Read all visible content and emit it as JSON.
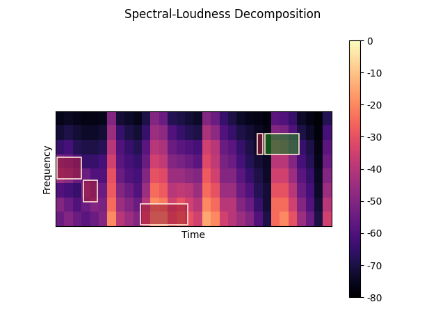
{
  "chart_data": {
    "type": "heatmap",
    "title": "Spectral-Loudness Decomposition",
    "x_label": "Time",
    "y_label": "Frequency",
    "tick_labels": false,
    "color": "magma",
    "xlim": [
      0,
      32
    ],
    "ylim": [
      0,
      8
    ],
    "cells": [
      [
        -55,
        -50,
        -55,
        -58,
        -55,
        -50,
        -20,
        -40,
        -45,
        -50,
        -35,
        -15,
        -15,
        -30,
        -25,
        -30,
        -35,
        -15,
        -20,
        -35,
        -40,
        -45,
        -50,
        -60,
        -70,
        -25,
        -20,
        -30,
        -45,
        -55,
        -70,
        -35
      ],
      [
        -50,
        -55,
        -60,
        -55,
        -50,
        -52,
        -25,
        -45,
        -50,
        -55,
        -40,
        -20,
        -22,
        -35,
        -30,
        -35,
        -40,
        -20,
        -25,
        -40,
        -40,
        -50,
        -55,
        -65,
        -72,
        -25,
        -25,
        -35,
        -50,
        -60,
        -72,
        -40
      ],
      [
        -60,
        -62,
        -65,
        -50,
        -55,
        -55,
        -28,
        -50,
        -55,
        -60,
        -45,
        -25,
        -28,
        -40,
        -38,
        -40,
        -45,
        -25,
        -30,
        -45,
        -45,
        -55,
        -60,
        -68,
        -72,
        -30,
        -30,
        -40,
        -55,
        -62,
        -74,
        -45
      ],
      [
        -45,
        -48,
        -55,
        -55,
        -60,
        -60,
        -30,
        -55,
        -60,
        -62,
        -50,
        -30,
        -32,
        -45,
        -45,
        -48,
        -50,
        -28,
        -35,
        -50,
        -50,
        -58,
        -65,
        -70,
        -74,
        -35,
        -35,
        -45,
        -58,
        -65,
        -75,
        -50
      ],
      [
        -52,
        -55,
        -60,
        -65,
        -65,
        -62,
        -35,
        -58,
        -62,
        -65,
        -55,
        -35,
        -38,
        -50,
        -52,
        -55,
        -58,
        -32,
        -38,
        -52,
        -55,
        -62,
        -68,
        -72,
        -75,
        -40,
        -40,
        -50,
        -62,
        -68,
        -76,
        -55
      ],
      [
        -65,
        -62,
        -68,
        -70,
        -70,
        -68,
        -40,
        -60,
        -65,
        -68,
        -58,
        -40,
        -42,
        -55,
        -58,
        -60,
        -62,
        -35,
        -40,
        -55,
        -58,
        -65,
        -70,
        -74,
        -76,
        -42,
        -45,
        -55,
        -65,
        -70,
        -77,
        -58
      ],
      [
        -72,
        -70,
        -72,
        -74,
        -74,
        -72,
        -45,
        -65,
        -70,
        -72,
        -65,
        -45,
        -48,
        -60,
        -65,
        -68,
        -70,
        -42,
        -48,
        -60,
        -65,
        -70,
        -72,
        -75,
        -77,
        -50,
        -52,
        -60,
        -70,
        -74,
        -78,
        -62
      ],
      [
        -76,
        -75,
        -76,
        -77,
        -77,
        -76,
        -50,
        -72,
        -74,
        -76,
        -70,
        -50,
        -55,
        -68,
        -70,
        -72,
        -74,
        -50,
        -55,
        -65,
        -70,
        -74,
        -76,
        -77,
        -78,
        -58,
        -60,
        -65,
        -74,
        -77,
        -79,
        -68
      ]
    ],
    "colorbar_range": [
      -80,
      0
    ],
    "colorbar_ticks": [
      0,
      -10,
      -20,
      -30,
      -40,
      -50,
      -60,
      -70,
      -80
    ],
    "regions": [
      {
        "time": [
          0.2,
          3.0
        ],
        "frequency": [
          3.3,
          4.8
        ],
        "color": "#a01e3c"
      },
      {
        "time": [
          3.2,
          4.8
        ],
        "frequency": [
          1.7,
          3.2
        ],
        "color": "#a01e3c"
      },
      {
        "time": [
          9.8,
          15.3
        ],
        "frequency": [
          0.1,
          1.55
        ],
        "color": "#a01e3c"
      },
      {
        "time": [
          23.4,
          24.0
        ],
        "frequency": [
          5.0,
          6.45
        ],
        "color": "#a01e3c"
      },
      {
        "time": [
          24.3,
          28.2
        ],
        "frequency": [
          5.0,
          6.45
        ],
        "color": "#1f8a1f"
      }
    ]
  }
}
